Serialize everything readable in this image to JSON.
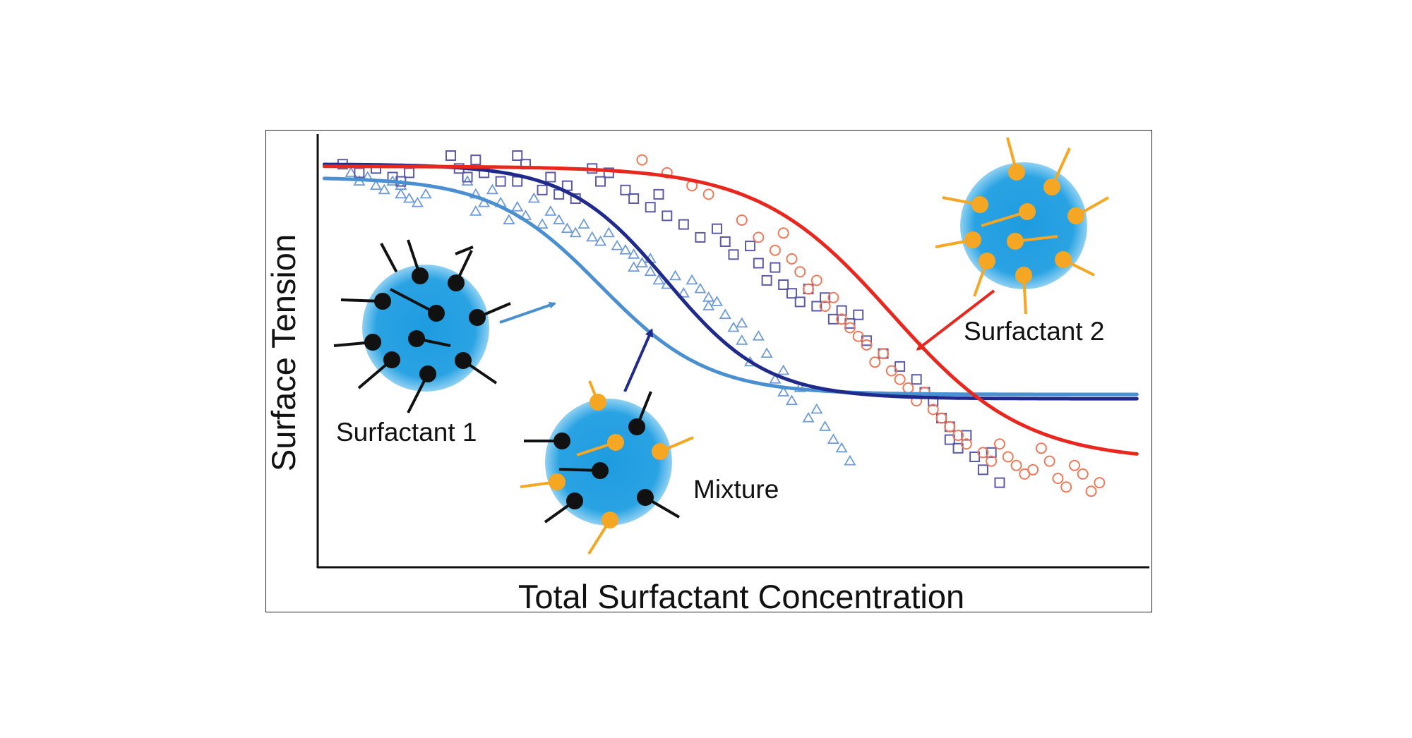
{
  "chart_data": {
    "type": "scatter",
    "xlabel": "Total Surfactant Concentration",
    "ylabel": "Surface Tension",
    "xlim": [
      0,
      100
    ],
    "ylim": [
      0,
      100
    ],
    "grid": false,
    "legend": "none",
    "series": [
      {
        "color": "#4a8fd0",
        "marker": "curve",
        "curve": {
          "top": 90,
          "bottom": 39.5,
          "mid": 34,
          "width": 6.5
        }
      },
      {
        "color": "#1f2a8a",
        "marker": "curve",
        "curve": {
          "top": 93,
          "bottom": 38.5,
          "mid": 42,
          "width": 6
        }
      },
      {
        "color": "#e8281e",
        "marker": "curve",
        "curve": {
          "top": 92.5,
          "bottom": 24,
          "mid": 69,
          "width": 8
        }
      },
      {
        "color": "#6f9bd6",
        "marker": "triangle",
        "x": [
          4,
          5,
          6,
          7,
          8,
          9,
          10,
          11,
          10,
          12,
          13,
          18,
          19,
          20,
          19,
          21,
          22,
          23,
          24,
          25,
          26,
          27,
          28,
          29,
          30,
          31,
          32,
          33,
          34,
          35,
          36,
          37,
          38,
          38,
          39,
          40,
          40,
          41,
          42,
          43,
          44,
          45,
          46,
          47,
          47,
          48,
          49,
          50,
          51,
          51,
          52,
          53,
          54,
          55,
          56,
          56,
          57,
          58,
          59,
          60,
          61,
          62,
          63,
          64
        ],
        "y": [
          91,
          89,
          90,
          88,
          87,
          89,
          86,
          85,
          88,
          84,
          86,
          89,
          86,
          84,
          82,
          87,
          84,
          80,
          83,
          81,
          85,
          79,
          82,
          80,
          78,
          77,
          79,
          76,
          75,
          77,
          74,
          73,
          72,
          69,
          70,
          68,
          71,
          66,
          65,
          67,
          63,
          66,
          64,
          62,
          60,
          61,
          58,
          55,
          52,
          56,
          47,
          53,
          49,
          43,
          45,
          40,
          38,
          41,
          34,
          36,
          32,
          29,
          27,
          24
        ]
      },
      {
        "color": "#5b5aa8",
        "marker": "square",
        "x": [
          3,
          5,
          7,
          9,
          10,
          11,
          16,
          17,
          18,
          19,
          20,
          22,
          24,
          24,
          25,
          27,
          28,
          29,
          30,
          31,
          33,
          34,
          35,
          37,
          38,
          40,
          41,
          42,
          44,
          46,
          48,
          49,
          50,
          52,
          53,
          54,
          55,
          56,
          57,
          58,
          59,
          60,
          61,
          62,
          63,
          64,
          65,
          66,
          68,
          70,
          72,
          73,
          74,
          75,
          76,
          76,
          77,
          78,
          79,
          80,
          81,
          82
        ],
        "y": [
          93,
          91,
          92,
          90,
          89,
          91,
          95,
          92,
          90,
          94,
          91,
          89,
          95,
          89,
          93,
          87,
          90,
          86,
          88,
          85,
          92,
          89,
          91,
          87,
          85,
          83,
          86,
          81,
          79,
          76,
          78,
          75,
          72,
          74,
          70,
          66,
          69,
          65,
          63,
          61,
          64,
          60,
          62,
          57,
          59,
          56,
          58,
          52,
          49,
          46,
          43,
          40,
          38,
          34,
          32,
          29,
          27,
          30,
          25,
          22,
          26,
          19
        ]
      },
      {
        "color": "#ef7a5a",
        "marker": "circle",
        "x": [
          39,
          42,
          45,
          47,
          51,
          53,
          55,
          56,
          57,
          58,
          59,
          60,
          61,
          62,
          63,
          64,
          65,
          66,
          67,
          68,
          69,
          70,
          71,
          72,
          73,
          74,
          75,
          76,
          77,
          78,
          80,
          81,
          82,
          83,
          84,
          85,
          86,
          87,
          88,
          89,
          90,
          91,
          92,
          93,
          94
        ],
        "y": [
          94,
          91,
          88,
          86,
          80,
          76,
          73,
          77,
          71,
          68,
          64,
          66,
          60,
          62,
          57,
          55,
          53,
          51,
          47,
          49,
          45,
          43,
          41,
          38,
          40,
          36,
          34,
          32,
          30,
          28,
          26,
          24,
          28,
          25,
          23,
          21,
          22,
          27,
          24,
          20,
          18,
          23,
          21,
          17,
          19
        ]
      }
    ],
    "annotations": {
      "surfactant1": "Surfactant 1",
      "surfactant2": "Surfactant 2",
      "mixture": "Mixture"
    }
  },
  "colors": {
    "micelle_core": "#3aa6e0",
    "tail_black": "#111111",
    "head_orange": "#f5a623",
    "arrow_light_blue": "#4a8fd0",
    "arrow_navy": "#1f2a8a",
    "arrow_red": "#e8281e"
  }
}
